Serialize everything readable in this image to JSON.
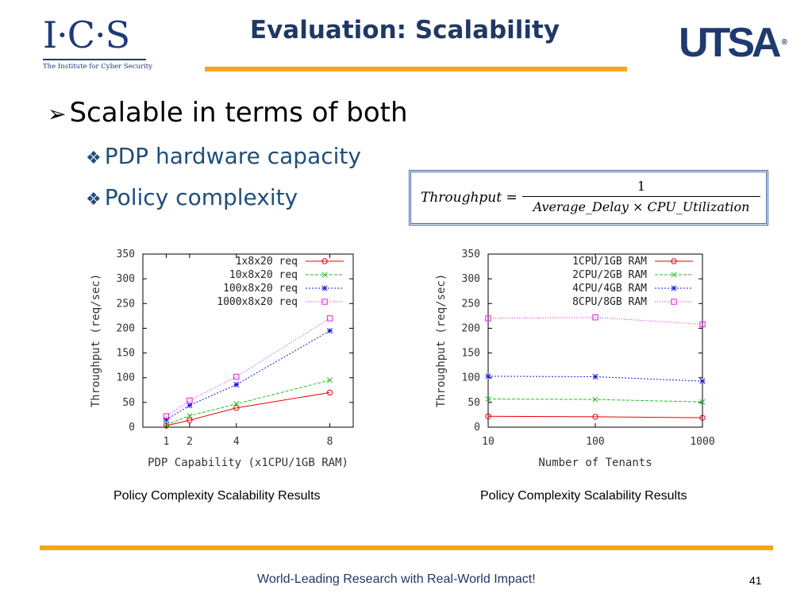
{
  "header": {
    "ics_logo_text": "I·C·S",
    "ics_logo_subtitle": "The Institute for Cyber Security",
    "title": "Evaluation: Scalability",
    "utsa_logo_text": "UTSA",
    "utsa_logo_mark": "®"
  },
  "content": {
    "bullet": "Scalable in terms of both",
    "sub_bullets": [
      "PDP hardware capacity",
      "Policy complexity"
    ],
    "formula": {
      "lhs": "Throughput =",
      "numerator": "1",
      "denominator": "Average_Delay × CPU_Utilization"
    }
  },
  "captions": [
    "Policy Complexity Scalability Results",
    "Policy Complexity Scalability Results"
  ],
  "footer": {
    "text": "World-Leading Research with Real-World Impact!",
    "page": "41"
  },
  "colors": {
    "accent": "#f5a522",
    "title": "#1f3864",
    "red": "#e8000b",
    "green": "#1ec31e",
    "blue": "#1818d8",
    "magenta": "#e020e0"
  },
  "chart_data": [
    {
      "type": "line",
      "xlabel": "PDP Capability (x1CPU/1GB RAM)",
      "ylabel": "Throughput (req/sec)",
      "xlim": [
        0,
        9
      ],
      "ylim": [
        0,
        350
      ],
      "xticks": [
        1,
        2,
        4,
        8
      ],
      "yticks": [
        0,
        50,
        100,
        150,
        200,
        250,
        300,
        350
      ],
      "legend_position": "top-right",
      "x": [
        1,
        2,
        4,
        8
      ],
      "series": [
        {
          "name": "1x8x20 req",
          "color": "#e8000b",
          "marker": "circle",
          "values": [
            3,
            14,
            39,
            70
          ]
        },
        {
          "name": "10x8x20 req",
          "color": "#1ec31e",
          "marker": "x",
          "values": [
            5,
            23,
            47,
            95
          ]
        },
        {
          "name": "100x8x20 req",
          "color": "#1818d8",
          "marker": "star",
          "values": [
            15,
            44,
            86,
            195
          ]
        },
        {
          "name": "1000x8x20 req",
          "color": "#e020e0",
          "marker": "square",
          "values": [
            22,
            54,
            102,
            220
          ]
        }
      ]
    },
    {
      "type": "line",
      "xlabel": "Number of Tenants",
      "ylabel": "Throughput (req/sec)",
      "xlim": [
        10,
        1000
      ],
      "ylim": [
        0,
        350
      ],
      "xticks": [
        10,
        100,
        1000
      ],
      "yticks": [
        0,
        50,
        100,
        150,
        200,
        250,
        300,
        350
      ],
      "legend_position": "top-right",
      "x": [
        10,
        100,
        1000
      ],
      "series": [
        {
          "name": "1CPU/1GB RAM",
          "color": "#e8000b",
          "marker": "circle",
          "values": [
            22,
            21,
            19
          ]
        },
        {
          "name": "2CPU/2GB RAM",
          "color": "#1ec31e",
          "marker": "x",
          "values": [
            57,
            56,
            51
          ]
        },
        {
          "name": "4CPU/4GB RAM",
          "color": "#1818d8",
          "marker": "star",
          "values": [
            103,
            102,
            93
          ]
        },
        {
          "name": "8CPU/8GB RAM",
          "color": "#e020e0",
          "marker": "square",
          "values": [
            220,
            222,
            208
          ]
        }
      ]
    }
  ]
}
